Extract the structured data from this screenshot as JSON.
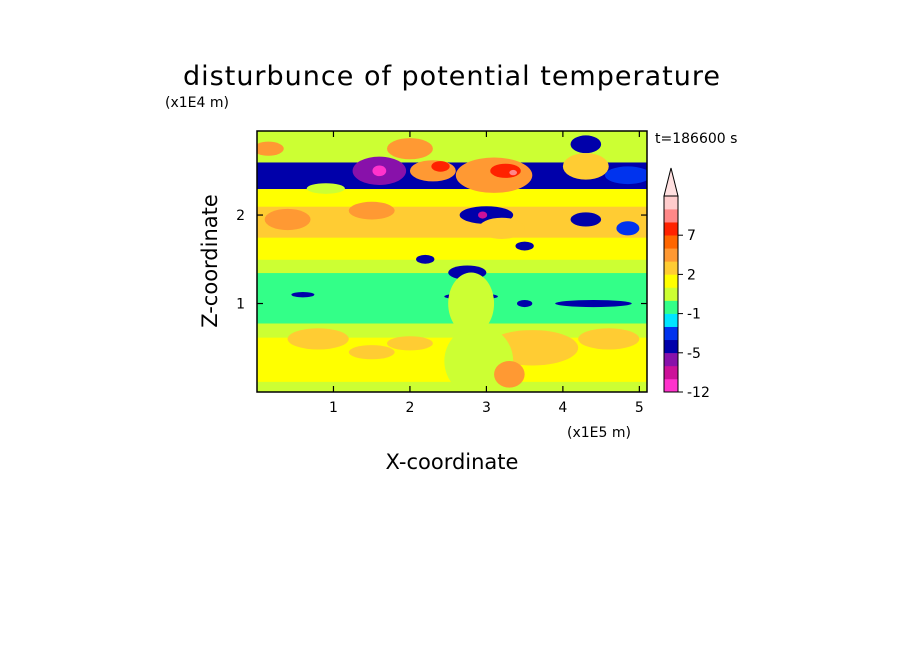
{
  "chart_data": {
    "type": "heatmap",
    "title": "disturbunce of potential temperature",
    "xlabel": "X-coordinate",
    "ylabel": "Z-coordinate",
    "x_unit": "(x1E5 m)",
    "y_unit": "(x1E4 m)",
    "time_label": "t=186600 s",
    "xlim": [
      0,
      5.1
    ],
    "ylim": [
      0,
      2.95
    ],
    "x_ticks": [
      {
        "value": 1,
        "label": "1"
      },
      {
        "value": 2,
        "label": "2"
      },
      {
        "value": 3,
        "label": "3"
      },
      {
        "value": 4,
        "label": "4"
      },
      {
        "value": 5,
        "label": "5"
      }
    ],
    "y_ticks": [
      {
        "value": 1,
        "label": "1"
      },
      {
        "value": 2,
        "label": "2"
      }
    ],
    "colorbar": {
      "levels": [
        -12,
        -9,
        -7,
        -5,
        -3,
        -2,
        -1,
        0,
        1,
        2,
        3,
        5,
        7,
        8,
        9
      ],
      "colors": [
        "#ff33cc",
        "#cc1199",
        "#8811aa",
        "#0000aa",
        "#0033ee",
        "#00e5ff",
        "#33ff88",
        "#ccff33",
        "#ffff00",
        "#ffcc33",
        "#ff9933",
        "#ff6600",
        "#ff2200",
        "#ff8888",
        "#ffcccc"
      ],
      "extend_color": "#ffe0e0",
      "labels": [
        {
          "value": -12,
          "label": "-12"
        },
        {
          "value": -5,
          "label": "-5"
        },
        {
          "value": -1,
          "label": "-1"
        },
        {
          "value": 2,
          "label": "2"
        },
        {
          "value": 7,
          "label": "7"
        }
      ]
    },
    "field": {
      "layers": [
        {
          "z_from": 0,
          "z_to": 0.12,
          "value": 0.5
        },
        {
          "z_from": 0.12,
          "z_to": 0.25,
          "value": 1.5
        },
        {
          "z_from": 0.25,
          "z_to": 0.62,
          "value": 1.2
        },
        {
          "z_from": 0.62,
          "z_to": 0.78,
          "value": 0.5
        },
        {
          "z_from": 0.78,
          "z_to": 1.35,
          "value": -0.5
        },
        {
          "z_from": 1.35,
          "z_to": 1.5,
          "value": 0.5
        },
        {
          "z_from": 1.5,
          "z_to": 1.75,
          "value": 1.5
        },
        {
          "z_from": 1.75,
          "z_to": 2.1,
          "value": 2.5
        },
        {
          "z_from": 2.1,
          "z_to": 2.3,
          "value": 1.8
        },
        {
          "z_from": 2.3,
          "z_to": 2.6,
          "value": -3.5
        },
        {
          "z_from": 2.6,
          "z_to": 2.95,
          "value": 0.5
        }
      ],
      "blobs": [
        {
          "x": 0.9,
          "z": 2.45,
          "rx": 0.55,
          "rz": 0.14,
          "value": -4
        },
        {
          "x": 1.6,
          "z": 2.5,
          "rx": 0.35,
          "rz": 0.16,
          "value": -6
        },
        {
          "x": 1.6,
          "z": 2.5,
          "rx": 0.09,
          "rz": 0.06,
          "value": -10
        },
        {
          "x": 0.25,
          "z": 2.42,
          "rx": 0.3,
          "rz": 0.1,
          "value": -4
        },
        {
          "x": 2.3,
          "z": 2.5,
          "rx": 0.3,
          "rz": 0.12,
          "value": 4
        },
        {
          "x": 2.4,
          "z": 2.55,
          "rx": 0.12,
          "rz": 0.06,
          "value": 7.5
        },
        {
          "x": 3.1,
          "z": 2.45,
          "rx": 0.5,
          "rz": 0.2,
          "value": 4
        },
        {
          "x": 3.25,
          "z": 2.5,
          "rx": 0.2,
          "rz": 0.08,
          "value": 7.5
        },
        {
          "x": 3.35,
          "z": 2.48,
          "rx": 0.05,
          "rz": 0.03,
          "value": 8.5
        },
        {
          "x": 1.5,
          "z": 2.05,
          "rx": 0.3,
          "rz": 0.1,
          "value": 4
        },
        {
          "x": 3.0,
          "z": 2.0,
          "rx": 0.35,
          "rz": 0.1,
          "value": -4
        },
        {
          "x": 2.95,
          "z": 2.0,
          "rx": 0.06,
          "rz": 0.04,
          "value": -8
        },
        {
          "x": 4.3,
          "z": 2.8,
          "rx": 0.2,
          "rz": 0.1,
          "value": -4
        },
        {
          "x": 4.85,
          "z": 2.45,
          "rx": 0.3,
          "rz": 0.1,
          "value": -2.5
        },
        {
          "x": 4.3,
          "z": 2.55,
          "rx": 0.3,
          "rz": 0.15,
          "value": 2.5
        },
        {
          "x": 0.15,
          "z": 2.75,
          "rx": 0.2,
          "rz": 0.08,
          "value": 4
        },
        {
          "x": 2.0,
          "z": 2.75,
          "rx": 0.3,
          "rz": 0.12,
          "value": 4
        },
        {
          "x": 2.75,
          "z": 1.35,
          "rx": 0.25,
          "rz": 0.08,
          "value": -4
        },
        {
          "x": 3.5,
          "z": 1.65,
          "rx": 0.12,
          "rz": 0.05,
          "value": -4
        },
        {
          "x": 2.2,
          "z": 1.5,
          "rx": 0.12,
          "rz": 0.05,
          "value": -4
        },
        {
          "x": 3.2,
          "z": 1.85,
          "rx": 0.3,
          "rz": 0.12,
          "value": 2.5
        },
        {
          "x": 4.3,
          "z": 1.95,
          "rx": 0.2,
          "rz": 0.08,
          "value": -4
        },
        {
          "x": 4.85,
          "z": 1.85,
          "rx": 0.15,
          "rz": 0.08,
          "value": -2.5
        },
        {
          "x": 0.6,
          "z": 1.1,
          "rx": 0.15,
          "rz": 0.03,
          "value": -4
        },
        {
          "x": 2.8,
          "z": 1.08,
          "rx": 0.35,
          "rz": 0.04,
          "value": -4
        },
        {
          "x": 3.5,
          "z": 1.0,
          "rx": 0.1,
          "rz": 0.04,
          "value": -4
        },
        {
          "x": 4.4,
          "z": 1.0,
          "rx": 0.5,
          "rz": 0.04,
          "value": -4
        },
        {
          "x": 0.8,
          "z": 0.6,
          "rx": 0.4,
          "rz": 0.12,
          "value": 2.5
        },
        {
          "x": 1.5,
          "z": 0.45,
          "rx": 0.3,
          "rz": 0.08,
          "value": 2.5
        },
        {
          "x": 2.0,
          "z": 0.55,
          "rx": 0.3,
          "rz": 0.08,
          "value": 2.5
        },
        {
          "x": 3.6,
          "z": 0.5,
          "rx": 0.6,
          "rz": 0.2,
          "value": 2.5
        },
        {
          "x": 4.6,
          "z": 0.6,
          "rx": 0.4,
          "rz": 0.12,
          "value": 2.5
        },
        {
          "x": 2.9,
          "z": 0.35,
          "rx": 0.45,
          "rz": 0.4,
          "value": 0.5
        },
        {
          "x": 2.8,
          "z": 1.0,
          "rx": 0.3,
          "rz": 0.35,
          "value": 0.5
        },
        {
          "x": 3.3,
          "z": 0.2,
          "rx": 0.2,
          "rz": 0.15,
          "value": 4
        },
        {
          "x": 0.4,
          "z": 1.95,
          "rx": 0.3,
          "rz": 0.12,
          "value": 4
        },
        {
          "x": 0.9,
          "z": 2.3,
          "rx": 0.25,
          "rz": 0.06,
          "value": 0.5
        }
      ]
    }
  }
}
